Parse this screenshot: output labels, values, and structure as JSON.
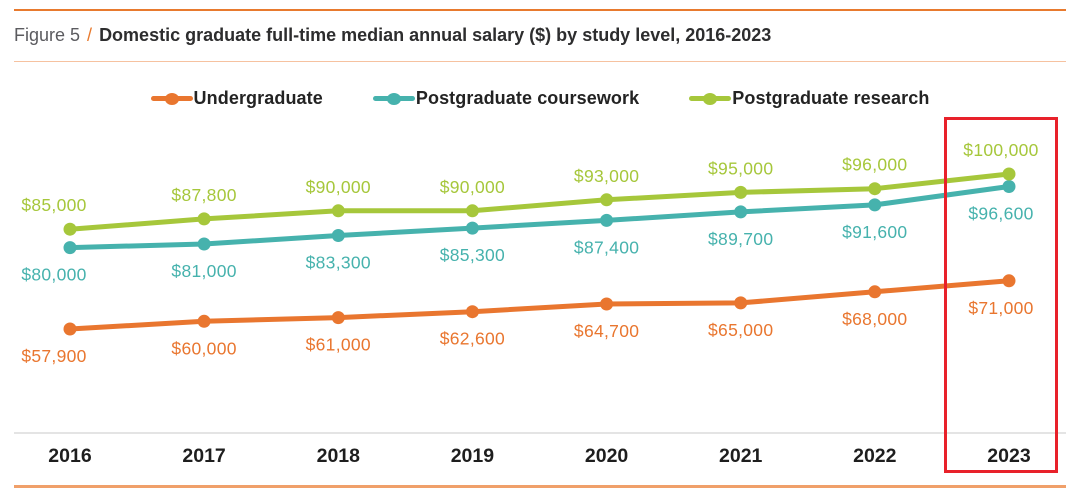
{
  "figure": {
    "label": "Figure 5",
    "separator": "/",
    "title": "Domestic graduate full-time median annual salary ($) by study level, 2016-2023"
  },
  "legend": [
    {
      "label": "Undergraduate",
      "color": "#E9762F"
    },
    {
      "label": "Postgraduate coursework",
      "color": "#46B2AD"
    },
    {
      "label": "Postgraduate research",
      "color": "#A6C73B"
    }
  ],
  "chart_data": {
    "type": "line",
    "title": "Domestic graduate full-time median annual salary ($) by study level, 2016-2023",
    "xlabel": "",
    "ylabel": "",
    "categories": [
      "2016",
      "2017",
      "2018",
      "2019",
      "2020",
      "2021",
      "2022",
      "2023"
    ],
    "series": [
      {
        "name": "Undergraduate",
        "color": "#E9762F",
        "values": [
          57900,
          60000,
          61000,
          62600,
          64700,
          65000,
          68000,
          71000
        ],
        "labels": [
          "$57,900",
          "$60,000",
          "$61,000",
          "$62,600",
          "$64,700",
          "$65,000",
          "$68,000",
          "$71,000"
        ],
        "label_position": "below"
      },
      {
        "name": "Postgraduate coursework",
        "color": "#46B2AD",
        "values": [
          80000,
          81000,
          83300,
          85300,
          87400,
          89700,
          91600,
          96600
        ],
        "labels": [
          "$80,000",
          "$81,000",
          "$83,300",
          "$85,300",
          "$87,400",
          "$89,700",
          "$91,600",
          "$96,600"
        ],
        "label_position": "below"
      },
      {
        "name": "Postgraduate research",
        "color": "#A6C73B",
        "values": [
          85000,
          87800,
          90000,
          90000,
          93000,
          95000,
          96000,
          100000
        ],
        "labels": [
          "$85,000",
          "$87,800",
          "$90,000",
          "$90,000",
          "$93,000",
          "$95,000",
          "$96,000",
          "$100,000"
        ],
        "label_position": "above"
      }
    ],
    "ylim": [
      55000,
      103000
    ],
    "grid": false,
    "legend_position": "top",
    "highlight": {
      "category": "2023",
      "color": "#E8212A"
    }
  },
  "colors": {
    "accent_rule_top": "#E87A2E",
    "accent_rule_bottom": "#F0A06A",
    "title_underline": "#F6C2A0",
    "axis_line": "#DBDBDB",
    "axis_text": "#1E1E1E",
    "highlight_red": "#E8212A"
  }
}
